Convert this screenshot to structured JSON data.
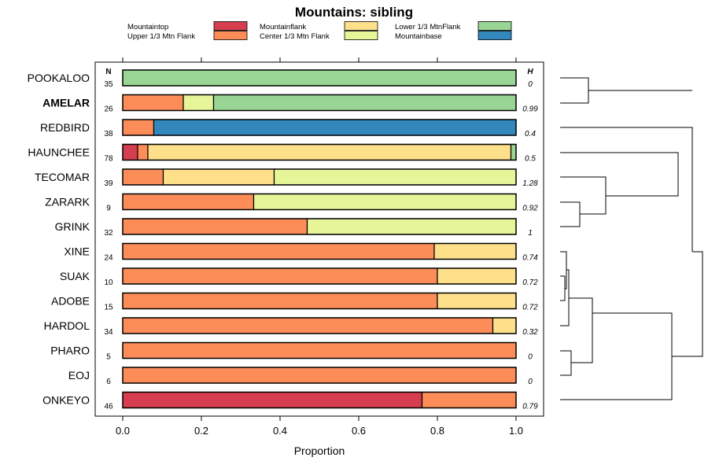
{
  "colors": {
    "Mountaintop": "#d53e4f",
    "Upper 1/3 Mtn Flank": "#fc8d59",
    "Mountainflank": "#fee08b",
    "Center 1/3 Mtn Flank": "#e6f598",
    "Lower 1/3 MtnFlank": "#99d594",
    "Mountainbase": "#3288bd"
  },
  "chart_data": {
    "type": "bar",
    "orientation": "horizontal-stacked",
    "title": "Mountains: sibling",
    "xlabel": "Proportion",
    "ylabel": "",
    "xlim": [
      0,
      1
    ],
    "xticks": [
      "0.0",
      "0.2",
      "0.4",
      "0.6",
      "0.8",
      "1.0"
    ],
    "n_header": "N",
    "h_header": "H",
    "legend": {
      "placement": "top",
      "entries": [
        "Mountaintop",
        "Upper 1/3 Mtn Flank",
        "Mountainflank",
        "Center 1/3 Mtn Flank",
        "Lower 1/3 MtnFlank",
        "Mountainbase"
      ]
    },
    "rows": [
      {
        "label": "POOKALOO",
        "bold": false,
        "n": "35",
        "h": "0",
        "segments": [
          {
            "cat": "Lower 1/3 MtnFlank",
            "value": 1.0
          }
        ]
      },
      {
        "label": "AMELAR",
        "bold": true,
        "n": "26",
        "h": "0.99",
        "segments": [
          {
            "cat": "Upper 1/3 Mtn Flank",
            "value": 0.154
          },
          {
            "cat": "Center 1/3 Mtn Flank",
            "value": 0.077
          },
          {
            "cat": "Lower 1/3 MtnFlank",
            "value": 0.769
          }
        ]
      },
      {
        "label": "REDBIRD",
        "bold": false,
        "n": "38",
        "h": "0.4",
        "segments": [
          {
            "cat": "Upper 1/3 Mtn Flank",
            "value": 0.079
          },
          {
            "cat": "Mountainbase",
            "value": 0.921
          }
        ]
      },
      {
        "label": "HAUNCHEE",
        "bold": false,
        "n": "78",
        "h": "0.5",
        "segments": [
          {
            "cat": "Mountaintop",
            "value": 0.038
          },
          {
            "cat": "Upper 1/3 Mtn Flank",
            "value": 0.026
          },
          {
            "cat": "Mountainflank",
            "value": 0.923
          },
          {
            "cat": "Lower 1/3 MtnFlank",
            "value": 0.013
          }
        ]
      },
      {
        "label": "TECOMAR",
        "bold": false,
        "n": "39",
        "h": "1.28",
        "segments": [
          {
            "cat": "Upper 1/3 Mtn Flank",
            "value": 0.103
          },
          {
            "cat": "Mountainflank",
            "value": 0.282
          },
          {
            "cat": "Center 1/3 Mtn Flank",
            "value": 0.615
          }
        ]
      },
      {
        "label": "ZARARK",
        "bold": false,
        "n": "9",
        "h": "0.92",
        "segments": [
          {
            "cat": "Upper 1/3 Mtn Flank",
            "value": 0.333
          },
          {
            "cat": "Center 1/3 Mtn Flank",
            "value": 0.667
          }
        ]
      },
      {
        "label": "GRINK",
        "bold": false,
        "n": "32",
        "h": "1",
        "segments": [
          {
            "cat": "Upper 1/3 Mtn Flank",
            "value": 0.469
          },
          {
            "cat": "Center 1/3 Mtn Flank",
            "value": 0.531
          }
        ]
      },
      {
        "label": "XINE",
        "bold": false,
        "n": "24",
        "h": "0.74",
        "segments": [
          {
            "cat": "Upper 1/3 Mtn Flank",
            "value": 0.792
          },
          {
            "cat": "Mountainflank",
            "value": 0.208
          }
        ]
      },
      {
        "label": "SUAK",
        "bold": false,
        "n": "10",
        "h": "0.72",
        "segments": [
          {
            "cat": "Upper 1/3 Mtn Flank",
            "value": 0.8
          },
          {
            "cat": "Mountainflank",
            "value": 0.2
          }
        ]
      },
      {
        "label": "ADOBE",
        "bold": false,
        "n": "15",
        "h": "0.72",
        "segments": [
          {
            "cat": "Upper 1/3 Mtn Flank",
            "value": 0.8
          },
          {
            "cat": "Mountainflank",
            "value": 0.2
          }
        ]
      },
      {
        "label": "HARDOL",
        "bold": false,
        "n": "34",
        "h": "0.32",
        "segments": [
          {
            "cat": "Upper 1/3 Mtn Flank",
            "value": 0.941
          },
          {
            "cat": "Mountainflank",
            "value": 0.059
          }
        ]
      },
      {
        "label": "PHARO",
        "bold": false,
        "n": "5",
        "h": "0",
        "segments": [
          {
            "cat": "Upper 1/3 Mtn Flank",
            "value": 1.0
          }
        ]
      },
      {
        "label": "EOJ",
        "bold": false,
        "n": "6",
        "h": "0",
        "segments": [
          {
            "cat": "Upper 1/3 Mtn Flank",
            "value": 1.0
          }
        ]
      },
      {
        "label": "ONKEYO",
        "bold": false,
        "n": "46",
        "h": "0.79",
        "segments": [
          {
            "cat": "Mountaintop",
            "value": 0.761
          },
          {
            "cat": "Upper 1/3 Mtn Flank",
            "value": 0.239
          }
        ]
      }
    ]
  }
}
